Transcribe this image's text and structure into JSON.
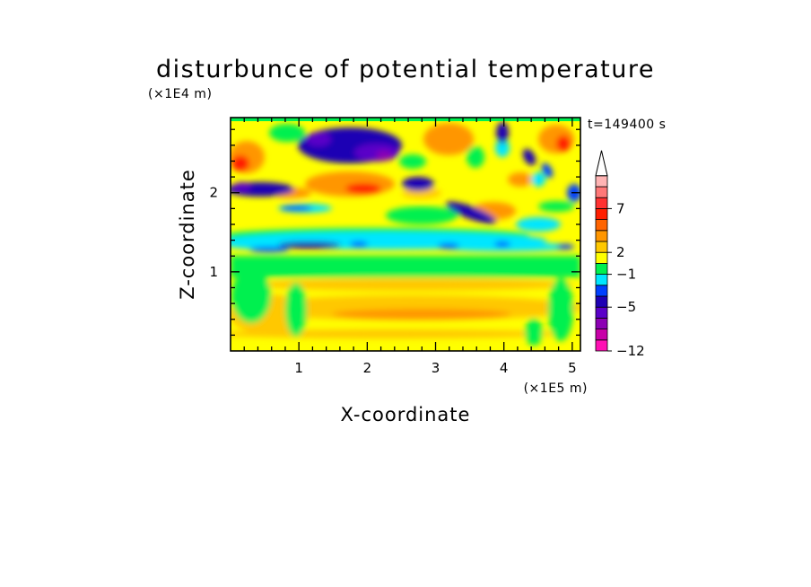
{
  "chart_data": {
    "type": "heatmap",
    "title": "disturbunce of potential temperature",
    "xlabel": "X-coordinate",
    "ylabel": "Z-coordinate",
    "x_unit": "(×1E5 m)",
    "y_unit": "(×1E4 m)",
    "time_label": "t=149400  s",
    "xlim": [
      0,
      5.12
    ],
    "ylim": [
      0,
      2.95
    ],
    "x_ticks": [
      "1",
      "2",
      "3",
      "4",
      "5"
    ],
    "y_ticks": [
      "1",
      "2"
    ],
    "colorbar": {
      "tick_labels": [
        "7",
        "2",
        "−1",
        "−5",
        "−12"
      ],
      "colors": [
        "#ff10b4",
        "#c800a8",
        "#8c00b4",
        "#5a00c8",
        "#1e00b4",
        "#0040ff",
        "#00e6ff",
        "#00f050",
        "#ffff00",
        "#ffc800",
        "#ff9600",
        "#ff6400",
        "#ff1e00",
        "#ff3232",
        "#ff7878",
        "#ffb4b4"
      ],
      "extend": "max"
    },
    "grid": false,
    "legend": "colorbar right"
  }
}
